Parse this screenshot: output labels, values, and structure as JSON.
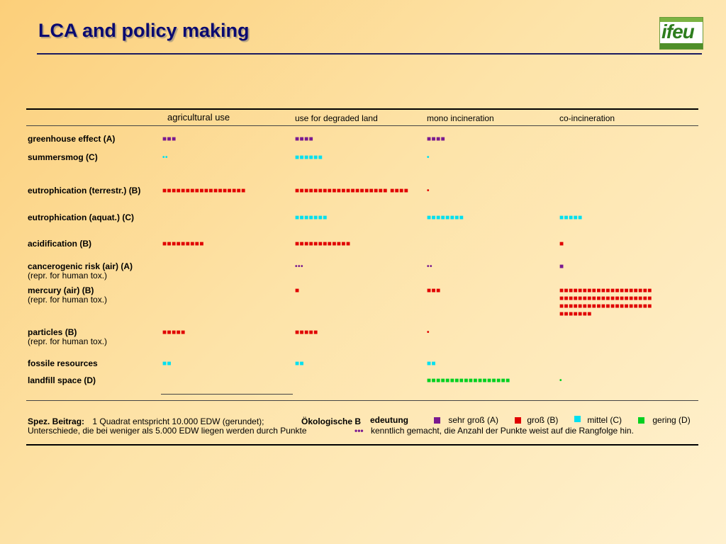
{
  "slide": {
    "title": "LCA and policy making",
    "logo_text": "ifeu"
  },
  "table": {
    "columns": [
      "agricultural use",
      "use for degraded land",
      "mono incineration",
      "co-incineration"
    ],
    "rows": [
      {
        "label": "greenhouse effect (A)",
        "sub": "",
        "cells": [
          "■■■",
          "■■■■",
          "■■■■",
          ""
        ]
      },
      {
        "label": "summersmog (C)",
        "sub": "",
        "cells": [
          "••",
          "■■■■■■",
          "•",
          ""
        ]
      },
      {
        "label": "eutrophication (terrestr.) (B)",
        "sub": "",
        "cells": [
          "■■■■■■■■■■■■■■■■■■",
          "■■■■■■■■■■■■■■■■■■■■ ■■■■",
          "•",
          ""
        ]
      },
      {
        "label": "eutrophication (aquat.) (C)",
        "sub": "",
        "cells": [
          "",
          "■■■■■■■",
          "■■■■■■■■",
          "■■■■■"
        ]
      },
      {
        "label": "acidification (B)",
        "sub": "",
        "cells": [
          "■■■■■■■■■",
          "■■■■■■■■■■■■",
          "",
          "■"
        ]
      },
      {
        "label": "cancerogenic risk (air) (A)",
        "sub": "(repr. for human tox.)",
        "cells": [
          "",
          "•••",
          "••",
          "■"
        ]
      },
      {
        "label": "mercury (air) (B)",
        "sub": "(repr. for human tox.)",
        "cells": [
          "",
          "■",
          "■■■",
          "■■■■■■■■■■■■■■■■■■■■ ■■■■■■■■■■■■■■■■■■■■ ■■■■■■■■■■■■■■■■■■■■ ■■■■■■■"
        ]
      },
      {
        "label": "particles (B)",
        "sub": "(repr. for human tox.)",
        "cells": [
          "■■■■■",
          "■■■■■",
          "•",
          ""
        ]
      },
      {
        "label": "fossile resources",
        "sub": "",
        "cells": [
          "■■",
          "■■",
          "■■",
          ""
        ]
      },
      {
        "label": "landfill space (D)",
        "sub": "",
        "cells": [
          "",
          "",
          "■■■■■■■■■■■■■■■■■■",
          "•"
        ]
      }
    ]
  },
  "footer": {
    "spez_label": "Spez. Beitrag:",
    "spez_text": "1 Quadrat entspricht 10.000 EDW (gerundet);",
    "okol_label": "Ökologische B",
    "okol_label2": "edeutung",
    "legend": [
      {
        "label": "sehr groß (A)",
        "color": "#7a1a90"
      },
      {
        "label": "groß  (B)",
        "color": "#e00000"
      },
      {
        "label": "mittel (C)",
        "color": "#00e0f0"
      },
      {
        "label": "gering (D)",
        "color": "#00d020"
      }
    ],
    "line2": "Unterschiede, die bei weniger als 5.000 EDW liegen werden durch Punkte",
    "dots": "•••",
    "line2b": "kenntlich gemacht, die Anzahl der Punkte weist auf die Rangfolge hin."
  }
}
